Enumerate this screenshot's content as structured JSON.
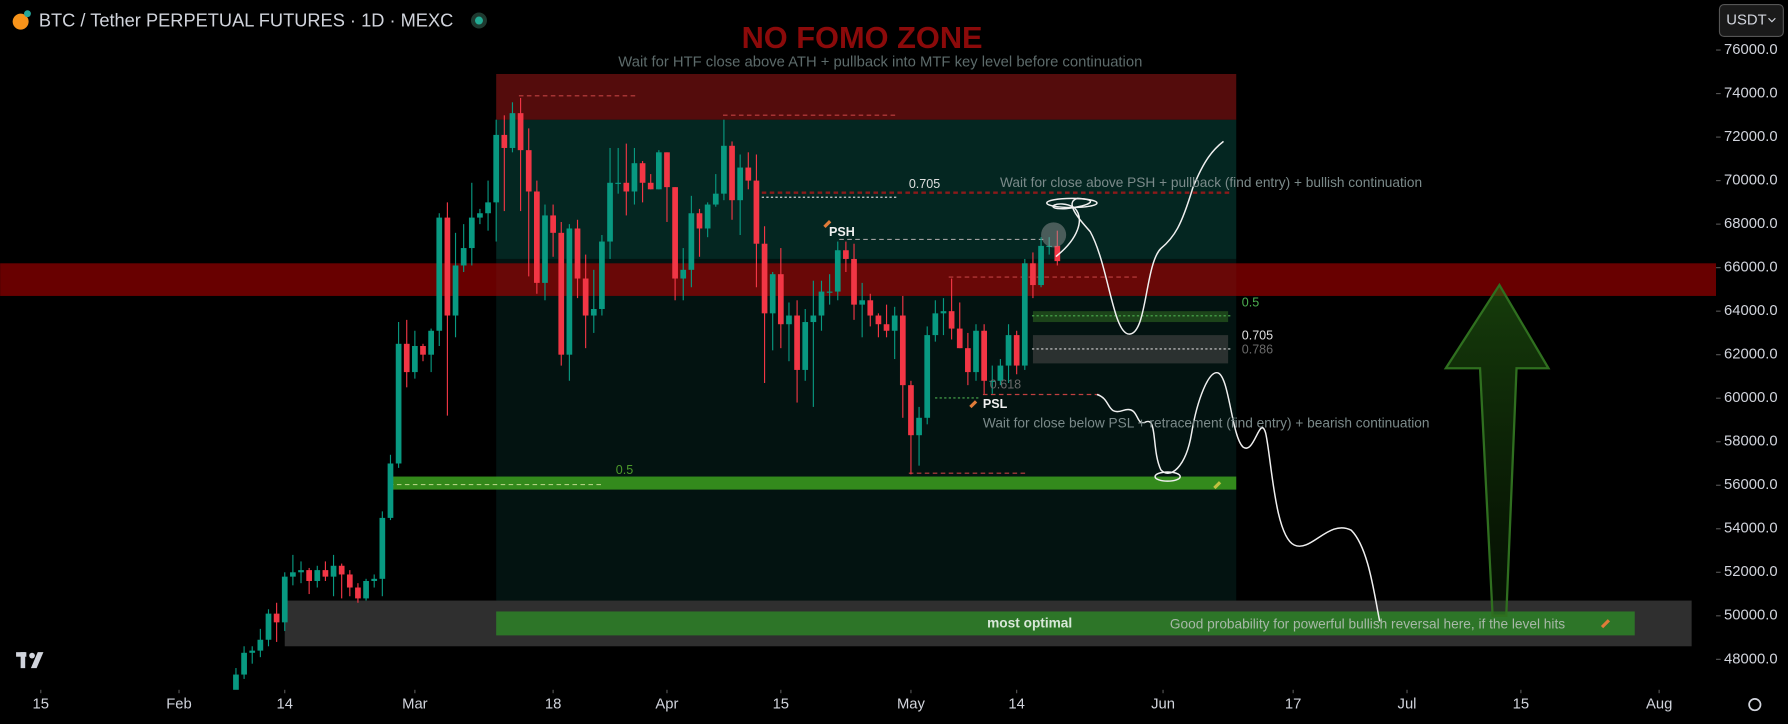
{
  "chart_data": {
    "type": "candlestick",
    "title": "BTC / Tether PERPETUAL FUTURES · 1D · MEXC",
    "currency_button": "USDT",
    "up_color": "#089981",
    "down_color": "#f23645",
    "ylim": [
      46600,
      78300
    ],
    "yticks": [
      {
        "value": 76000,
        "label": "76000.0"
      },
      {
        "value": 74000,
        "label": "74000.0"
      },
      {
        "value": 72000,
        "label": "72000.0"
      },
      {
        "value": 70000,
        "label": "70000.0"
      },
      {
        "value": 68000,
        "label": "68000.0"
      },
      {
        "value": 66000,
        "label": "66000.0"
      },
      {
        "value": 64000,
        "label": "64000.0"
      },
      {
        "value": 62000,
        "label": "62000.0"
      },
      {
        "value": 60000,
        "label": "60000.0"
      },
      {
        "value": 58000,
        "label": "58000.0"
      },
      {
        "value": 56000,
        "label": "56000.0"
      },
      {
        "value": 54000,
        "label": "54000.0"
      },
      {
        "value": 52000,
        "label": "52000.0"
      },
      {
        "value": 50000,
        "label": "50000.0"
      },
      {
        "value": 48000,
        "label": "48000.0"
      }
    ],
    "xlim": [
      "01-10",
      "08-08"
    ],
    "xticks": [
      {
        "value": "01-15",
        "label": "15"
      },
      {
        "value": "02-01",
        "label": "Feb"
      },
      {
        "value": "02-14",
        "label": "14"
      },
      {
        "value": "03-01",
        "label": "Mar"
      },
      {
        "value": "03-18",
        "label": "18"
      },
      {
        "value": "04-01",
        "label": "Apr"
      },
      {
        "value": "04-15",
        "label": "15"
      },
      {
        "value": "05-01",
        "label": "May"
      },
      {
        "value": "05-14",
        "label": "14"
      },
      {
        "value": "06-01",
        "label": "Jun"
      },
      {
        "value": "06-17",
        "label": "17"
      },
      {
        "value": "07-01",
        "label": "Jul"
      },
      {
        "value": "07-15",
        "label": "15"
      },
      {
        "value": "08-01",
        "label": "Aug"
      }
    ],
    "x": [
      "02-08",
      "02-09",
      "02-10",
      "02-11",
      "02-12",
      "02-13",
      "02-14",
      "02-15",
      "02-16",
      "02-17",
      "02-18",
      "02-19",
      "02-20",
      "02-21",
      "02-22",
      "02-23",
      "02-24",
      "02-25",
      "02-26",
      "02-27",
      "02-28",
      "02-29",
      "03-01",
      "03-02",
      "03-03",
      "03-04",
      "03-05",
      "03-06",
      "03-07",
      "03-08",
      "03-09",
      "03-10",
      "03-11",
      "03-12",
      "03-13",
      "03-14",
      "03-15",
      "03-16",
      "03-17",
      "03-18",
      "03-19",
      "03-20",
      "03-21",
      "03-22",
      "03-23",
      "03-24",
      "03-25",
      "03-26",
      "03-27",
      "03-28",
      "03-29",
      "03-30",
      "03-31",
      "04-01",
      "04-02",
      "04-03",
      "04-04",
      "04-05",
      "04-06",
      "04-07",
      "04-08",
      "04-09",
      "04-10",
      "04-11",
      "04-12",
      "04-13",
      "04-14",
      "04-15",
      "04-16",
      "04-17",
      "04-18",
      "04-19",
      "04-20",
      "04-21",
      "04-22",
      "04-23",
      "04-24",
      "04-25",
      "04-26",
      "04-27",
      "04-28",
      "04-29",
      "04-30",
      "05-01",
      "05-02",
      "05-03",
      "05-04",
      "05-05",
      "05-06",
      "05-07",
      "05-08",
      "05-09",
      "05-10",
      "05-11",
      "05-12",
      "05-13",
      "05-14",
      "05-15",
      "05-16",
      "05-17",
      "05-18",
      "05-19"
    ],
    "open": [
      46500,
      47300,
      48300,
      48400,
      48900,
      50100,
      49700,
      51800,
      52000,
      52100,
      51600,
      52100,
      51800,
      52300,
      51900,
      51300,
      50800,
      51600,
      51700,
      54500,
      57000,
      62500,
      61200,
      62400,
      62000,
      63100,
      68300,
      63800,
      66100,
      66900,
      68300,
      68500,
      69000,
      72100,
      71500,
      73100,
      71400,
      69500,
      65300,
      68400,
      67600,
      62000,
      67800,
      65500,
      63800,
      64100,
      67200,
      69900,
      69900,
      69500,
      70800,
      69900,
      69600,
      71300,
      69700,
      65500,
      65900,
      68500,
      67800,
      68900,
      69400,
      71600,
      69100,
      70600,
      70000,
      67100,
      63900,
      65700,
      63400,
      63800,
      61300,
      63500,
      63800,
      64900,
      64900,
      66800,
      66400,
      64300,
      64500,
      63800,
      63400,
      63100,
      63800,
      60600,
      58300,
      59100,
      62900,
      63900,
      64000,
      63200,
      62300,
      61200,
      63100,
      60800,
      60800,
      61500,
      62900,
      61500,
      66200,
      65200,
      67000,
      67000
    ],
    "high": [
      47600,
      48600,
      48600,
      49400,
      50300,
      50600,
      52000,
      52800,
      52500,
      52200,
      52300,
      52500,
      52800,
      52400,
      52100,
      51500,
      51700,
      51900,
      54800,
      57400,
      63500,
      63600,
      63100,
      62500,
      63200,
      68500,
      69000,
      67600,
      68000,
      69900,
      68700,
      70000,
      72800,
      73000,
      73600,
      73800,
      72400,
      70000,
      68900,
      68900,
      68100,
      68000,
      68200,
      66600,
      65900,
      67500,
      71500,
      71500,
      71700,
      71500,
      70900,
      70300,
      71400,
      71300,
      69700,
      66900,
      69300,
      68700,
      69000,
      70300,
      72800,
      71800,
      71200,
      71300,
      71200,
      67900,
      65800,
      66900,
      64400,
      64500,
      64100,
      65400,
      65400,
      65700,
      67200,
      67200,
      67100,
      65300,
      64800,
      63900,
      64300,
      64200,
      64700,
      60800,
      59600,
      63300,
      64500,
      64600,
      65500,
      64400,
      63000,
      63400,
      63400,
      61500,
      61800,
      63400,
      63100,
      66400,
      66700,
      67400,
      67400,
      67700
    ],
    "low": [
      46300,
      47100,
      47800,
      48100,
      48600,
      48800,
      49300,
      51400,
      51500,
      51000,
      51300,
      51600,
      50900,
      50800,
      50900,
      50600,
      50700,
      51300,
      50900,
      54400,
      56800,
      60500,
      60900,
      61700,
      61200,
      62400,
      59200,
      62800,
      65800,
      66100,
      68000,
      67700,
      67200,
      68600,
      71300,
      68600,
      65600,
      64800,
      64500,
      66500,
      61500,
      60800,
      64600,
      62300,
      63000,
      63800,
      66400,
      69400,
      68400,
      68900,
      69000,
      69600,
      69600,
      68100,
      64500,
      64500,
      65100,
      66500,
      67400,
      68800,
      69100,
      68200,
      67500,
      69600,
      65100,
      60700,
      62200,
      62300,
      61700,
      59800,
      60800,
      59600,
      63100,
      64300,
      64500,
      65800,
      63600,
      62800,
      63300,
      62800,
      62800,
      61800,
      59100,
      56500,
      56900,
      58800,
      62600,
      62900,
      62700,
      62300,
      60600,
      60800,
      60200,
      60200,
      60600,
      60700,
      61100,
      61300,
      64600,
      65100,
      66600,
      66100
    ],
    "close": [
      47300,
      48300,
      48400,
      48900,
      50100,
      49700,
      51800,
      52000,
      52100,
      51600,
      52100,
      51800,
      52300,
      51900,
      51300,
      50800,
      51600,
      51700,
      54500,
      57000,
      62500,
      61200,
      62400,
      62000,
      63100,
      68300,
      63800,
      66100,
      66900,
      68300,
      68500,
      69000,
      72100,
      71500,
      73100,
      71400,
      69500,
      65300,
      68400,
      67600,
      62000,
      67800,
      65500,
      63800,
      64100,
      67200,
      69900,
      69900,
      69500,
      70800,
      69900,
      69600,
      71300,
      69700,
      65500,
      65900,
      68500,
      67800,
      68900,
      69400,
      71600,
      69100,
      70600,
      70000,
      67100,
      63900,
      65700,
      63400,
      63800,
      61300,
      63500,
      63800,
      64900,
      64900,
      66800,
      66400,
      64300,
      64500,
      63800,
      63400,
      63100,
      63800,
      60600,
      58300,
      59100,
      62900,
      63900,
      64000,
      63200,
      62300,
      61200,
      63100,
      60800,
      60800,
      61500,
      62900,
      61500,
      66200,
      65200,
      67000,
      67000,
      66300
    ],
    "zones": [
      {
        "x": [
          "03-11",
          "06-10"
        ],
        "y": [
          66400,
          72800
        ],
        "color": "rgba(10,90,78,0.42)"
      },
      {
        "x": [
          "03-11",
          "06-10"
        ],
        "y": [
          50700,
          66400
        ],
        "color": "rgba(10,70,60,0.28)"
      },
      {
        "x": [
          "03-11",
          "06-10"
        ],
        "y": [
          72800,
          74900
        ],
        "color": "rgba(140,20,20,0.6)"
      },
      {
        "x": [
          "02-14",
          "08-05"
        ],
        "y": [
          48600,
          50700
        ],
        "color": "rgba(85,85,85,0.55)"
      },
      {
        "x": [
          "01-10",
          "08-08"
        ],
        "y": [
          64700,
          66200
        ],
        "color": "rgba(190,0,0,0.55)"
      },
      {
        "x": [
          "02-27",
          "06-10"
        ],
        "y": [
          55800,
          56400
        ],
        "color": "rgba(60,160,30,0.85)"
      },
      {
        "x": [
          "03-11",
          "07-29"
        ],
        "y": [
          49100,
          50200
        ],
        "color": "rgba(45,125,40,0.9)"
      },
      {
        "x": [
          "05-16",
          "06-09"
        ],
        "y": [
          63500,
          64000
        ],
        "color": "rgba(40,90,30,0.7)"
      },
      {
        "x": [
          "05-16",
          "06-09"
        ],
        "y": [
          61600,
          62900
        ],
        "color": "rgba(70,70,70,0.6)"
      }
    ],
    "annotations": {
      "zone_title": "NO FOMO ZONE",
      "zone_subtitle": "Wait for HTF close above ATH + pullback into MTF key level before continuation",
      "fib_705_top": "0.705",
      "bull_plan": "Wait for close above PSH + pullback (find entry) + bullish continuation",
      "psh": "PSH",
      "fib_5_right": "0.5",
      "fib_705_right": "0.705",
      "fib_786_right": "0.786",
      "fib_618": "0.618",
      "psl": "PSL",
      "bear_plan": "Wait for close below PSL + retracement (find entry) + bearish continuation",
      "fib_5_left": "0.5",
      "most_optimal": "most optimal",
      "reversal_note": "Good probability for powerful bullish reversal here, if the level hits"
    }
  }
}
